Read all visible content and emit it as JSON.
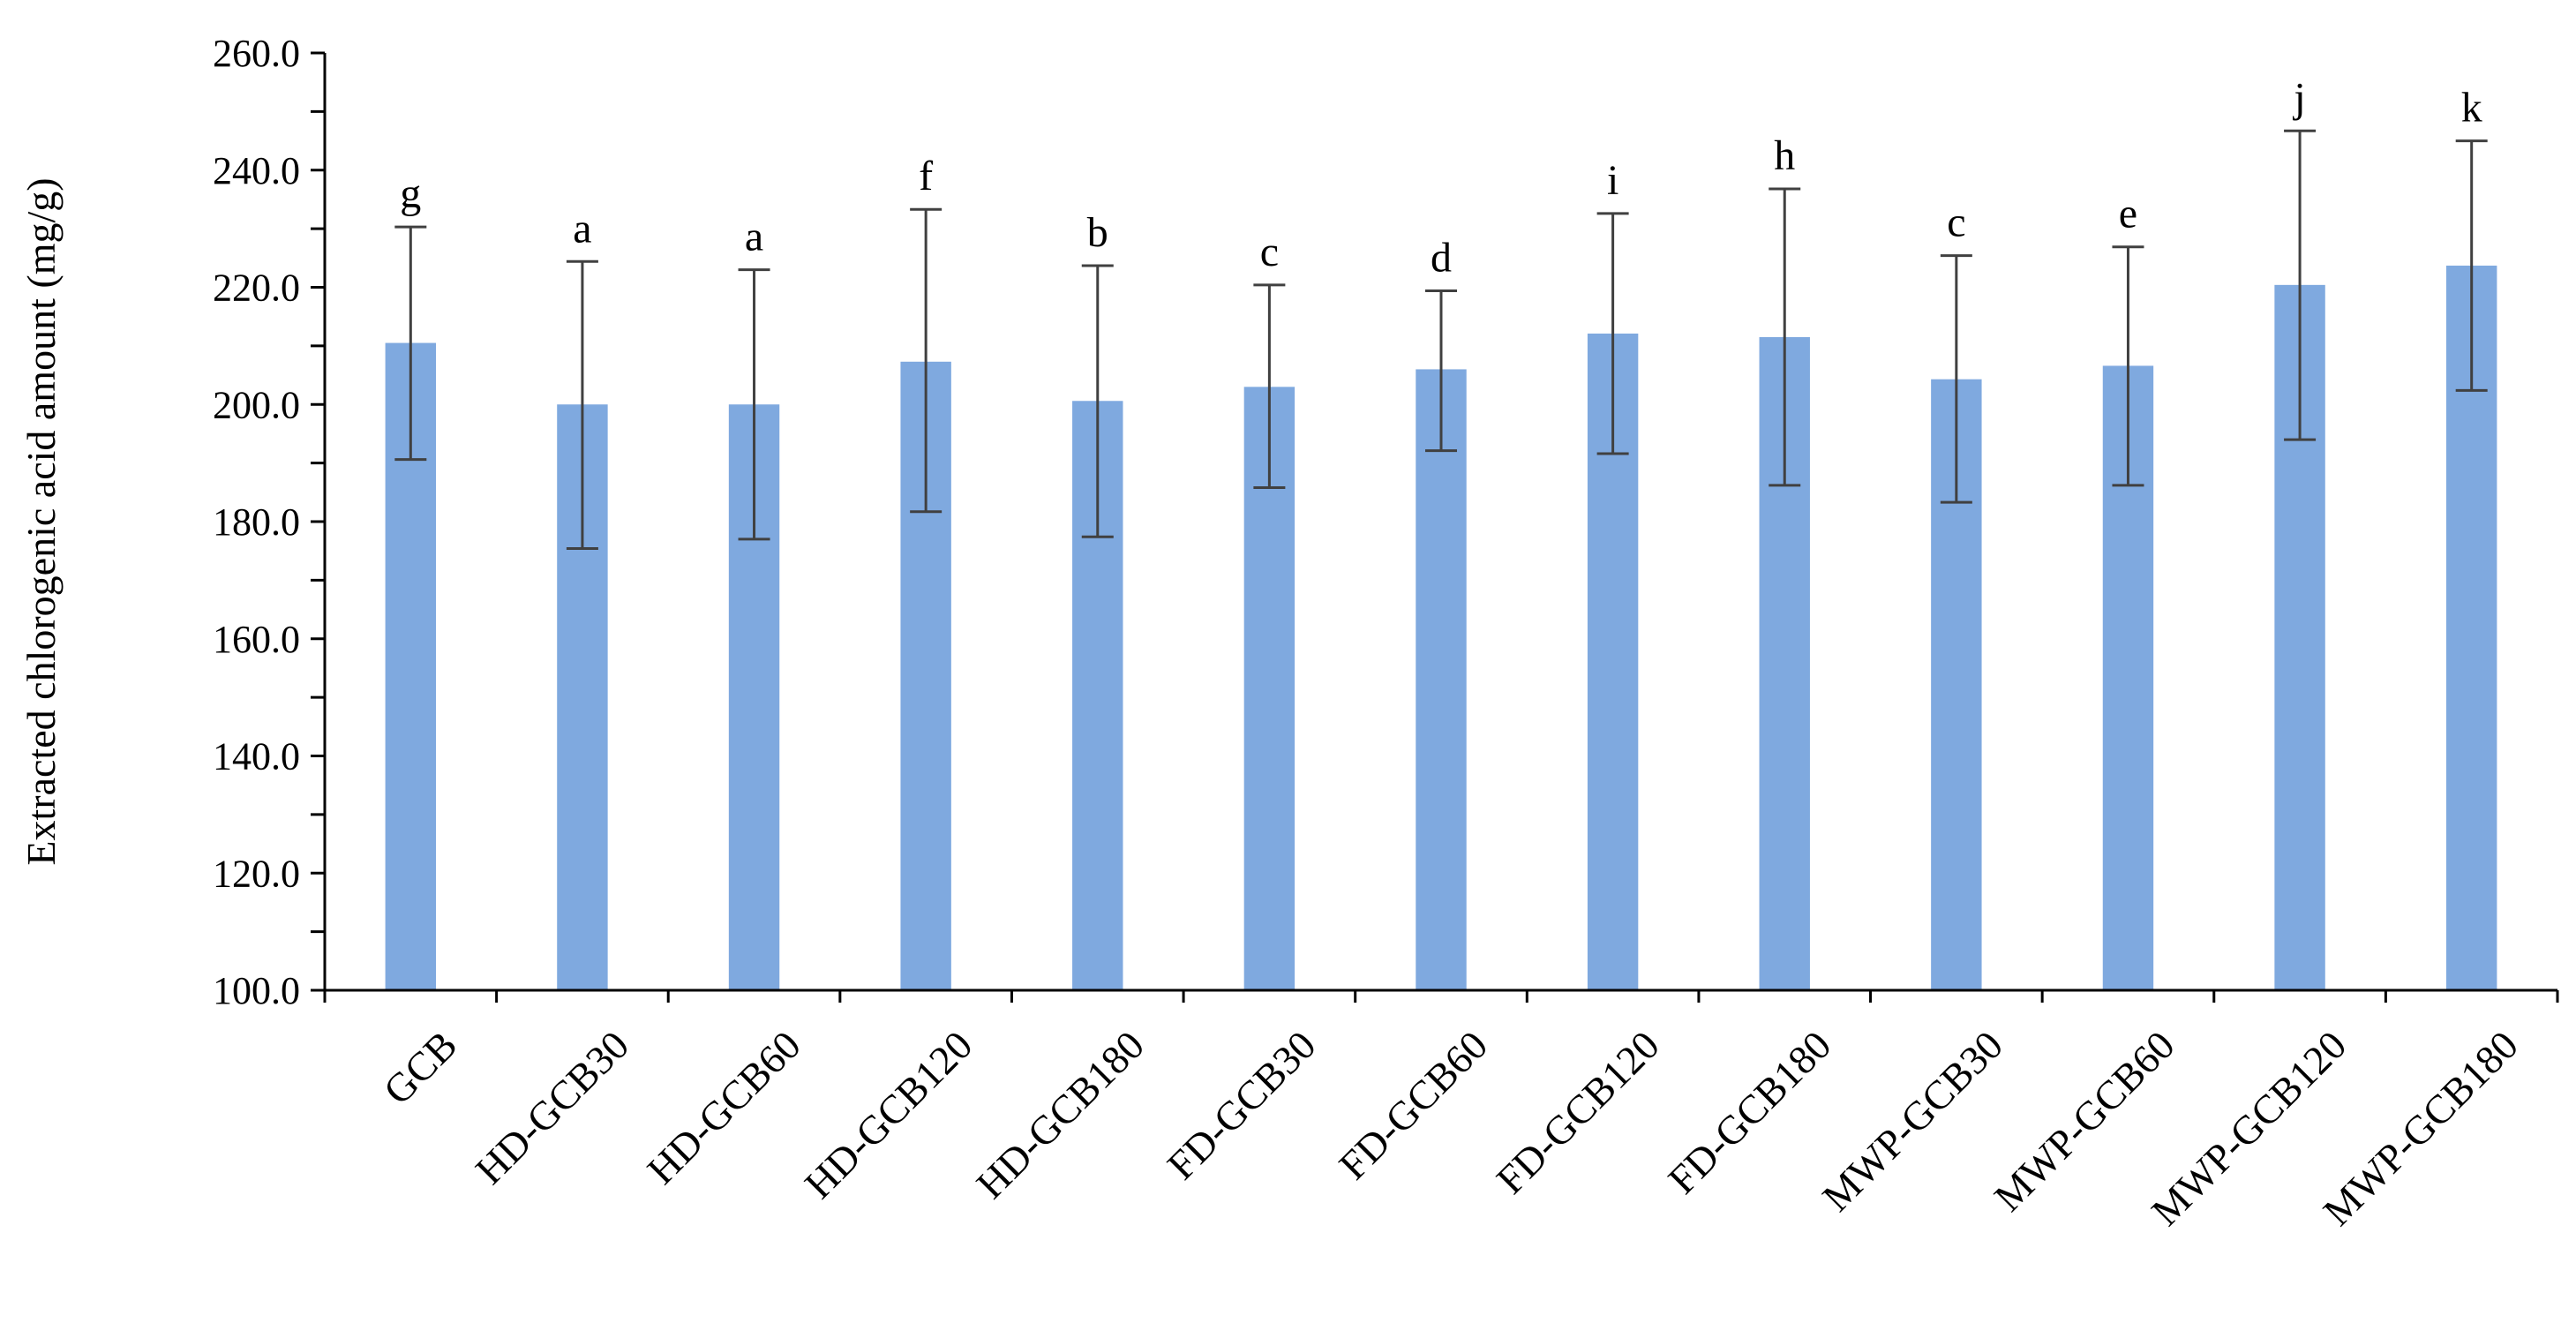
{
  "chart_data": {
    "type": "bar",
    "title": "",
    "xlabel": "",
    "ylabel": "Extracted chlorogenic acid amount (mg/g)",
    "ylim": [
      100,
      260
    ],
    "ytick_step": 20,
    "ytick_labels": [
      "100.0",
      "120.0",
      "140.0",
      "160.0",
      "180.0",
      "200.0",
      "220.0",
      "240.0",
      "260.0"
    ],
    "grid": false,
    "legend": "none",
    "bar_color": "#7fa9df",
    "error_bar_color": "#404040",
    "categories": [
      "GCB",
      "HD-GCB30",
      "HD-GCB60",
      "HD-GCB120",
      "HD-GCB180",
      "FD-GCB30",
      "FD-GCB60",
      "FD-GCB120",
      "FD-GCB180",
      "MWP-GCB30",
      "MWP-GCB60",
      "MWP-GCB120",
      "MWP-GCB180"
    ],
    "values": [
      210.5,
      200.0,
      200.0,
      207.3,
      200.6,
      203.0,
      206.0,
      212.1,
      211.5,
      204.3,
      206.6,
      220.4,
      223.7
    ],
    "errors_upper": [
      230.3,
      224.4,
      223.0,
      233.3,
      223.7,
      220.4,
      219.4,
      232.6,
      236.8,
      225.4,
      226.9,
      246.7,
      245.0
    ],
    "errors_lower": [
      190.6,
      175.4,
      177.0,
      181.7,
      177.4,
      185.8,
      192.1,
      191.6,
      186.2,
      183.3,
      186.2,
      194.0,
      202.4
    ],
    "significance_letters": [
      "g",
      "a",
      "a",
      "f",
      "b",
      "c",
      "d",
      "i",
      "h",
      "c",
      "e",
      "j",
      "k"
    ]
  }
}
